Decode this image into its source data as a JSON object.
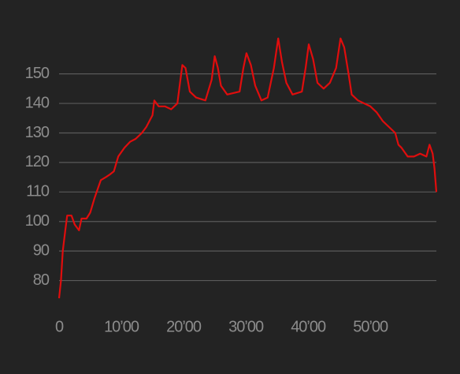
{
  "chart_data": {
    "type": "line",
    "series": [
      {
        "color": "#e00d0d",
        "x": [
          0,
          0.3,
          0.6,
          1,
          1.3,
          2,
          2.5,
          3.2,
          3.6,
          4.4,
          5,
          5.7,
          6.2,
          6.7,
          7.5,
          8.2,
          8.8,
          9.5,
          10.5,
          11.4,
          12.3,
          13.3,
          14,
          15,
          15.3,
          16,
          17,
          18,
          19,
          19.3,
          19.8,
          20.3,
          21,
          22,
          23.5,
          24.5,
          25,
          25.5,
          26,
          27,
          29,
          29.6,
          30.1,
          30.8,
          31.5,
          32.5,
          33.5,
          34.5,
          35.2,
          35.8,
          36.5,
          37.5,
          39,
          39.6,
          40.1,
          40.8,
          41.5,
          42.5,
          43.5,
          44.5,
          45.2,
          45.8,
          46.5,
          47,
          48,
          50,
          51,
          52,
          53,
          54,
          54.5,
          55,
          56,
          57,
          58,
          59,
          59.5,
          60,
          60.3,
          60.6
        ],
        "values": [
          74,
          80,
          90,
          97,
          102,
          102,
          99,
          97,
          101,
          101,
          103,
          108,
          111,
          114,
          115,
          116,
          117,
          122,
          125,
          127,
          128,
          130,
          132,
          136,
          141,
          139,
          139,
          138,
          140,
          145,
          153,
          152,
          144,
          142,
          141,
          148,
          156,
          152,
          146,
          143,
          144,
          152,
          157,
          153,
          146,
          141,
          142,
          152,
          162,
          154,
          147,
          143,
          144,
          152,
          160,
          155,
          147,
          145,
          147,
          152,
          162,
          159,
          150,
          143,
          141,
          139,
          137,
          134,
          132,
          130,
          126,
          125,
          122,
          122,
          123,
          122,
          126,
          123,
          118,
          110
        ]
      }
    ],
    "xlim": [
      0,
      60.6
    ],
    "ylim": [
      74,
      163
    ],
    "xticks": [
      0,
      {
        "value": 10,
        "label": "10’00"
      },
      {
        "value": 20,
        "label": "20’00"
      },
      {
        "value": 30,
        "label": "30’00"
      },
      {
        "value": 40,
        "label": "40’00"
      },
      {
        "value": 50,
        "label": "50’00"
      }
    ],
    "yticks": [
      80,
      90,
      100,
      110,
      120,
      130,
      140,
      150
    ],
    "grid": true
  }
}
